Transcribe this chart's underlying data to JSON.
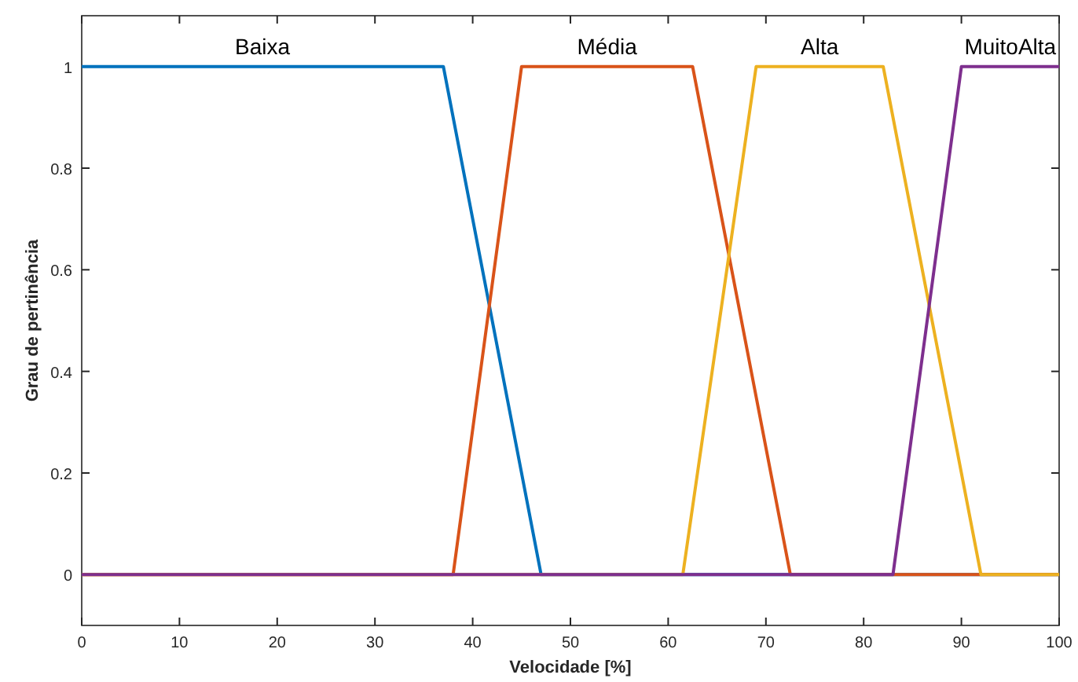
{
  "chart_data": {
    "type": "line",
    "xlabel": "Velocidade [%]",
    "ylabel": "Grau de pertinência",
    "xlim": [
      0,
      100
    ],
    "ylim": [
      -0.1,
      1.1
    ],
    "xticks": [
      0,
      10,
      20,
      30,
      40,
      50,
      60,
      70,
      80,
      90,
      100
    ],
    "yticks": [
      0,
      0.2,
      0.4,
      0.6,
      0.8,
      1
    ],
    "grid": false,
    "marker": "none",
    "line_style": "solid",
    "series": [
      {
        "name": "Baixa",
        "color": "#0072bd",
        "x": [
          0,
          37,
          47,
          100
        ],
        "values": [
          1,
          1,
          0,
          0
        ]
      },
      {
        "name": "Média",
        "color": "#d95319",
        "x": [
          0,
          38,
          45,
          62.5,
          72.5,
          100
        ],
        "values": [
          0,
          0,
          1,
          1,
          0,
          0
        ]
      },
      {
        "name": "Alta",
        "color": "#edb120",
        "x": [
          0,
          61.5,
          69,
          82,
          92,
          100
        ],
        "values": [
          0,
          0,
          1,
          1,
          0,
          0
        ]
      },
      {
        "name": "MuitoAlta",
        "color": "#7e2f8e",
        "x": [
          0,
          83,
          90,
          100
        ],
        "values": [
          0,
          0,
          1,
          1
        ]
      }
    ]
  }
}
